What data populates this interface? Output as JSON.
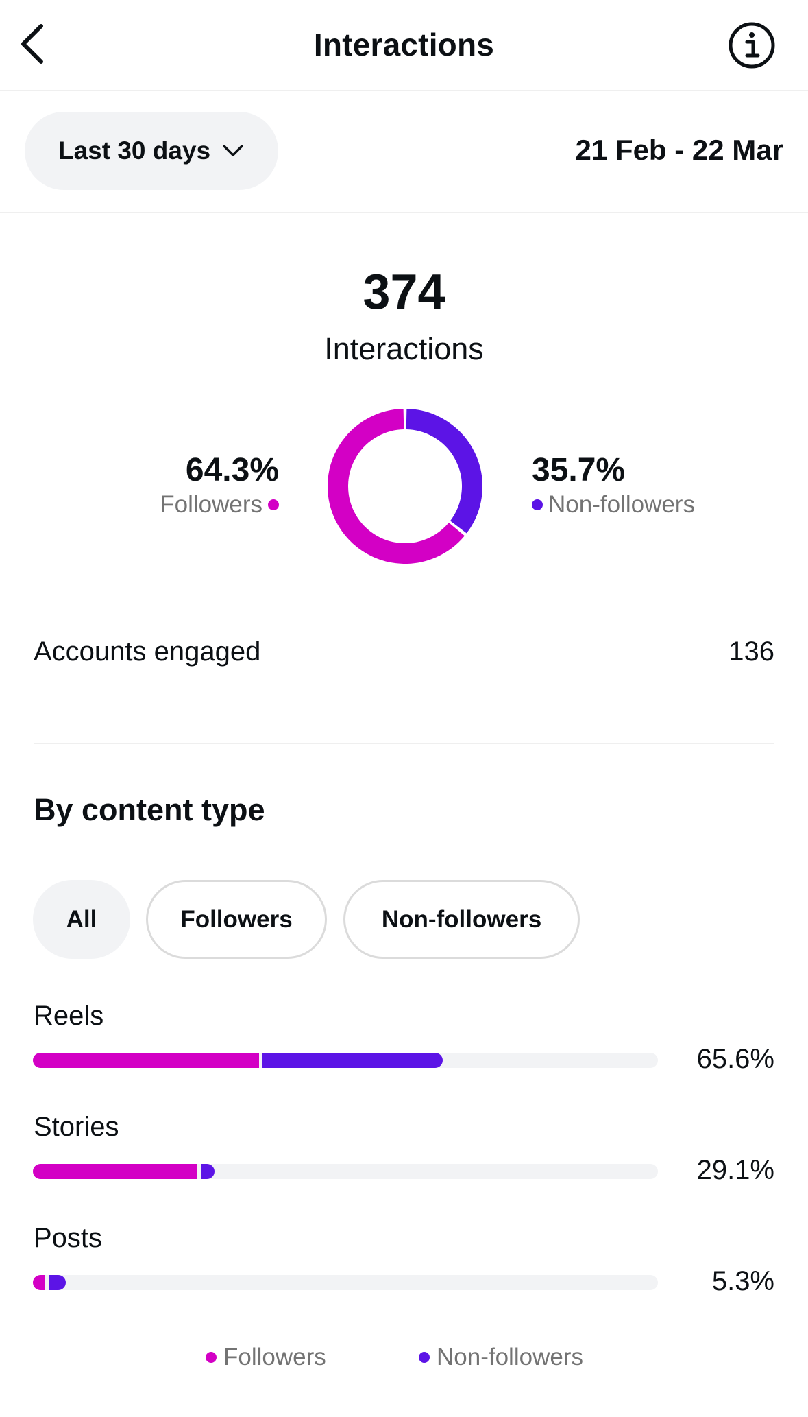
{
  "header": {
    "title": "Interactions",
    "back_icon": "chevron-left-icon",
    "info_icon": "info-icon"
  },
  "filter": {
    "range_label": "Last 30 days",
    "dropdown_icon": "chevron-down-icon",
    "date_range": "21 Feb - 22 Mar"
  },
  "summary": {
    "total": "374",
    "total_label": "Interactions",
    "followers_pct": "64.3%",
    "followers_label": "Followers",
    "nonfollowers_pct": "35.7%",
    "nonfollowers_label": "Non-followers"
  },
  "chart_data": {
    "type": "pie",
    "categories": [
      "Followers",
      "Non-followers"
    ],
    "values": [
      64.3,
      35.7
    ],
    "colors": [
      "#d300c5",
      "#5c14e6"
    ]
  },
  "accounts": {
    "label": "Accounts engaged",
    "value": "136"
  },
  "content_type": {
    "title": "By content type",
    "chips": [
      {
        "label": "All",
        "selected": true
      },
      {
        "label": "Followers",
        "selected": false
      },
      {
        "label": "Non-followers",
        "selected": false
      }
    ],
    "rows": [
      {
        "label": "Reels",
        "pct": "65.6%",
        "followers_share": 36.2,
        "nonfollowers_share": 29.4
      },
      {
        "label": "Stories",
        "pct": "29.1%",
        "followers_share": 26.3,
        "nonfollowers_share": 2.8
      },
      {
        "label": "Posts",
        "pct": "5.3%",
        "followers_share": 2.0,
        "nonfollowers_share": 3.3
      }
    ],
    "legend": [
      {
        "label": "Followers",
        "color": "#d300c5"
      },
      {
        "label": "Non-followers",
        "color": "#5c14e6"
      }
    ]
  },
  "colors": {
    "followers": "#d300c5",
    "nonfollowers": "#5c14e6",
    "track": "#f2f3f5"
  }
}
